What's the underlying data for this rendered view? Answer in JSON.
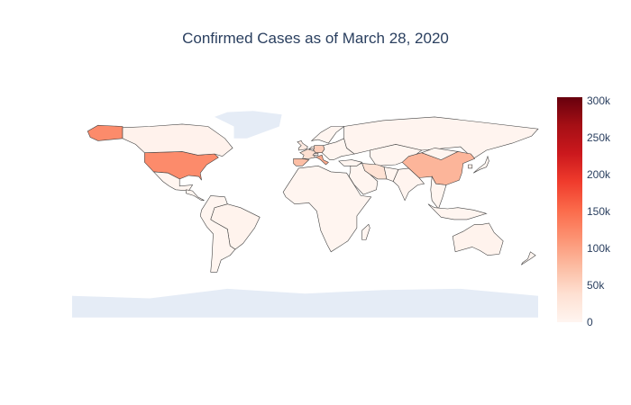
{
  "chart_data": {
    "type": "choropleth",
    "title": "Confirmed Cases as of March 28, 2020",
    "colorscale": {
      "name": "Reds",
      "stops": [
        "#fff5f0",
        "#fee0d2",
        "#fcbba1",
        "#fc9272",
        "#fb6a4a",
        "#ef3b2c",
        "#cb181d",
        "#a50f15",
        "#67000d"
      ],
      "min": 0,
      "max": 305000,
      "ticks": [
        0,
        50000,
        100000,
        150000,
        200000,
        250000,
        300000
      ],
      "tick_labels": [
        "0",
        "50k",
        "100k",
        "150k",
        "200k",
        "250k",
        "300k"
      ]
    },
    "no_data_color": "#e5ecf6",
    "border_color": "#444444",
    "countries": [
      {
        "name": "United States",
        "value": 121000
      },
      {
        "name": "Italy",
        "value": 92500
      },
      {
        "name": "China",
        "value": 82000
      },
      {
        "name": "Spain",
        "value": 73200
      },
      {
        "name": "Germany",
        "value": 57600
      },
      {
        "name": "France",
        "value": 38100
      },
      {
        "name": "Iran",
        "value": 35400
      },
      {
        "name": "United Kingdom",
        "value": 17300
      },
      {
        "name": "Switzerland",
        "value": 14100
      },
      {
        "name": "Netherlands",
        "value": 9800
      },
      {
        "name": "South Korea",
        "value": 9500
      },
      {
        "name": "Canada",
        "value": 5600
      },
      {
        "name": "Australia",
        "value": 3800
      },
      {
        "name": "Brazil",
        "value": 3900
      },
      {
        "name": "Russia",
        "value": 1260
      },
      {
        "name": "India",
        "value": 990
      }
    ]
  }
}
